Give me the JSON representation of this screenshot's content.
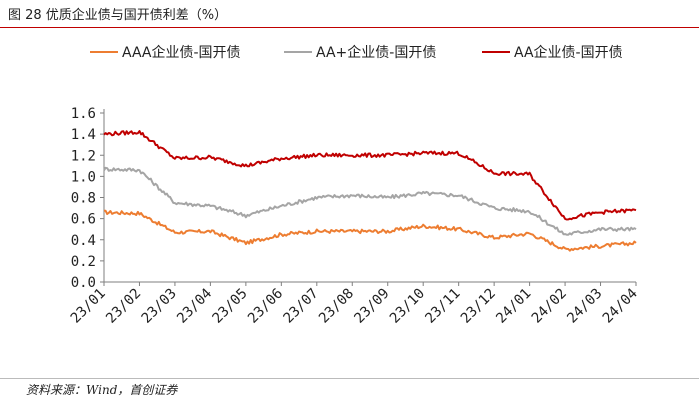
{
  "header": {
    "title": "图 28 优质企业债与国开债利差（%）"
  },
  "footer": {
    "source": "资料来源：Wind，首创证券"
  },
  "chart_data": {
    "type": "line",
    "title": "",
    "xlabel": "",
    "ylabel": "",
    "ylim": [
      0.0,
      1.6
    ],
    "y_ticks": [
      0.0,
      0.2,
      0.4,
      0.6,
      0.8,
      1.0,
      1.2,
      1.4,
      1.6
    ],
    "y_tick_labels": [
      "0.0",
      "0.2",
      "0.4",
      "0.6",
      "0.8",
      "1.0",
      "1.2",
      "1.4",
      "1.6"
    ],
    "categories": [
      "23/01",
      "23/02",
      "23/03",
      "23/04",
      "23/05",
      "23/06",
      "23/07",
      "23/08",
      "23/09",
      "23/10",
      "23/11",
      "23/12",
      "24/01",
      "24/02",
      "24/03",
      "24/04"
    ],
    "legend_position": "top",
    "grid": false,
    "series": [
      {
        "name": "AAA企业债-国开债",
        "color": "#ed7d31",
        "values": [
          0.66,
          0.65,
          0.47,
          0.48,
          0.37,
          0.45,
          0.48,
          0.48,
          0.48,
          0.53,
          0.5,
          0.42,
          0.46,
          0.31,
          0.34,
          0.37
        ]
      },
      {
        "name": "AA+企业债-国开债",
        "color": "#a5a5a5",
        "values": [
          1.07,
          1.06,
          0.75,
          0.72,
          0.63,
          0.72,
          0.8,
          0.82,
          0.8,
          0.84,
          0.82,
          0.7,
          0.67,
          0.45,
          0.5,
          0.5
        ]
      },
      {
        "name": "AA企业债-国开债",
        "color": "#c00000",
        "values": [
          1.4,
          1.42,
          1.17,
          1.18,
          1.1,
          1.17,
          1.2,
          1.2,
          1.2,
          1.22,
          1.22,
          1.03,
          1.02,
          0.6,
          0.66,
          0.68
        ]
      }
    ]
  }
}
